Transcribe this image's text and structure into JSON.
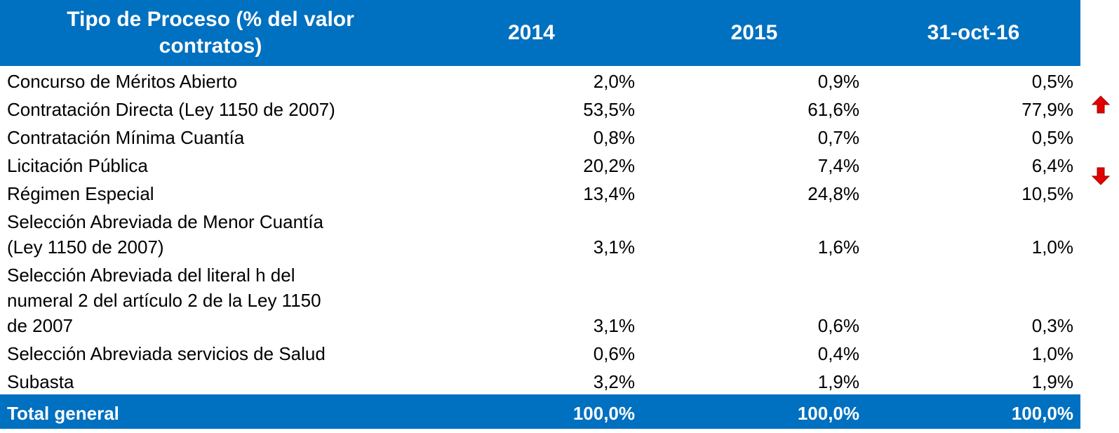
{
  "table": {
    "header": [
      [
        "Tipo de Proceso (% del valor",
        "contratos)"
      ],
      "2014",
      "2015",
      "31-oct-16"
    ],
    "rows": [
      [
        [
          "Concurso de Méritos Abierto"
        ],
        "2,0%",
        "0,9%",
        "0,5%"
      ],
      [
        [
          "Contratación Directa (Ley 1150 de 2007)"
        ],
        "53,5%",
        "61,6%",
        "77,9%"
      ],
      [
        [
          "Contratación Mínima Cuantía"
        ],
        "0,8%",
        "0,7%",
        "0,5%"
      ],
      [
        [
          "Licitación Pública"
        ],
        "20,2%",
        "7,4%",
        "6,4%"
      ],
      [
        [
          "Régimen Especial"
        ],
        "13,4%",
        "24,8%",
        "10,5%"
      ],
      [
        [
          "Selección Abreviada de Menor Cuantía",
          "(Ley 1150 de 2007)"
        ],
        "3,1%",
        "1,6%",
        "1,0%"
      ],
      [
        [
          "Selección Abreviada del literal h del",
          "numeral 2 del artículo 2 de la Ley 1150",
          "de 2007"
        ],
        "3,1%",
        "0,6%",
        "0,3%"
      ],
      [
        [
          "Selección Abreviada servicios de Salud"
        ],
        "0,6%",
        "0,4%",
        "1,0%"
      ],
      [
        [
          "Subasta"
        ],
        "3,2%",
        "1,9%",
        "1,9%"
      ]
    ],
    "total": [
      "Total general",
      "100,0%",
      "100,0%",
      "100,0%"
    ]
  }
}
